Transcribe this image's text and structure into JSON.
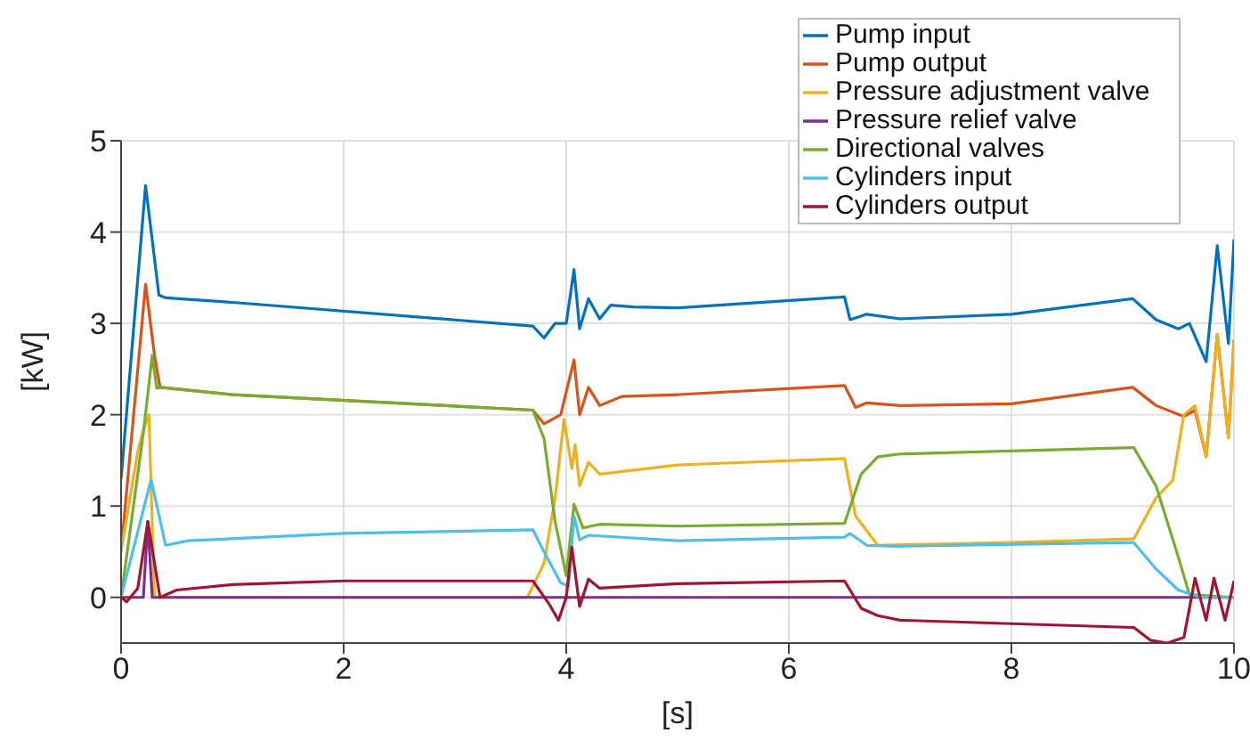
{
  "chart_data": {
    "type": "line",
    "xlabel": "[s]",
    "ylabel": "[kW]",
    "xlim": [
      0,
      10
    ],
    "ylim": [
      -0.5,
      5
    ],
    "xticks": [
      0,
      2,
      4,
      6,
      8,
      10
    ],
    "yticks": [
      0,
      1,
      2,
      3,
      4,
      5
    ],
    "grid": true,
    "legend": "top right",
    "line_style": "solid",
    "series": [
      {
        "name": "Pump input",
        "color": "#0072bd",
        "x": [
          0,
          0.22,
          0.34,
          0.4,
          1,
          3.7,
          3.8,
          3.9,
          4.0,
          4.07,
          4.12,
          4.2,
          4.3,
          4.4,
          4.6,
          5,
          6.5,
          6.55,
          6.7,
          7,
          8,
          9.09,
          9.3,
          9.5,
          9.6,
          9.75,
          9.85,
          9.95,
          10
        ],
        "values": [
          1.3,
          4.51,
          3.31,
          3.28,
          3.23,
          2.97,
          2.84,
          3.0,
          3.0,
          3.59,
          2.94,
          3.27,
          3.05,
          3.2,
          3.18,
          3.17,
          3.29,
          3.04,
          3.1,
          3.05,
          3.1,
          3.27,
          3.04,
          2.94,
          3.0,
          2.58,
          3.85,
          2.78,
          3.92
        ]
      },
      {
        "name": "Pump output",
        "color": "#d95319",
        "x": [
          0,
          0.22,
          0.3,
          0.35,
          1,
          3.7,
          3.8,
          3.95,
          4.07,
          4.12,
          4.2,
          4.3,
          4.5,
          5,
          6.5,
          6.6,
          6.7,
          7,
          8,
          9.09,
          9.3,
          9.55,
          9.65,
          9.75,
          9.85,
          9.95,
          10
        ],
        "values": [
          0.5,
          3.43,
          2.65,
          2.3,
          2.22,
          2.05,
          1.9,
          2.0,
          2.6,
          2.0,
          2.3,
          2.1,
          2.2,
          2.22,
          2.32,
          2.08,
          2.13,
          2.1,
          2.12,
          2.3,
          2.1,
          1.98,
          2.05,
          1.54,
          2.88,
          1.75,
          2.82
        ]
      },
      {
        "name": "Pressure adjustment valve",
        "color": "#edb120",
        "x": [
          0,
          0.15,
          0.2,
          0.25,
          0.3,
          3.65,
          3.8,
          3.9,
          3.98,
          4.05,
          4.08,
          4.12,
          4.2,
          4.3,
          5,
          6.5,
          6.6,
          6.8,
          8,
          9.1,
          9.3,
          9.45,
          9.55,
          9.65,
          9.75,
          9.85,
          9.95,
          10
        ],
        "values": [
          0.5,
          1.6,
          1.83,
          2.0,
          0,
          0,
          0.37,
          1.09,
          1.95,
          1.41,
          1.67,
          1.22,
          1.48,
          1.35,
          1.45,
          1.52,
          0.89,
          0.57,
          0.6,
          0.64,
          1.09,
          1.28,
          2.0,
          2.1,
          1.54,
          2.88,
          1.75,
          2.82
        ]
      },
      {
        "name": "Pressure relief valve",
        "color": "#7e2f8e",
        "x": [
          0,
          0.2,
          0.24,
          0.28,
          10
        ],
        "values": [
          0,
          0,
          0.83,
          0,
          0
        ]
      },
      {
        "name": "Directional valves",
        "color": "#77ac30",
        "x": [
          0,
          0.2,
          0.28,
          0.32,
          0.35,
          1,
          3.7,
          3.8,
          3.9,
          4.0,
          4.07,
          4.15,
          4.3,
          5,
          6.5,
          6.65,
          6.8,
          7,
          9.1,
          9.3,
          9.5,
          9.6,
          10
        ],
        "values": [
          0,
          1.8,
          2.65,
          2.29,
          2.3,
          2.22,
          2.05,
          1.74,
          0.83,
          0.24,
          1.02,
          0.76,
          0.8,
          0.78,
          0.81,
          1.35,
          1.54,
          1.57,
          1.64,
          1.22,
          0.44,
          0.03,
          0
        ]
      },
      {
        "name": "Cylinders input",
        "color": "#4dbeee",
        "x": [
          0,
          0.2,
          0.27,
          0.4,
          0.6,
          2,
          3.7,
          3.8,
          3.95,
          4.02,
          4.07,
          4.12,
          4.2,
          5,
          6.5,
          6.55,
          6.7,
          7,
          9.1,
          9.3,
          9.5,
          9.7,
          10
        ],
        "values": [
          0,
          0.96,
          1.29,
          0.57,
          0.62,
          0.7,
          0.74,
          0.5,
          0.16,
          0.12,
          0.89,
          0.63,
          0.68,
          0.62,
          0.66,
          0.7,
          0.57,
          0.56,
          0.6,
          0.31,
          0.08,
          0,
          0
        ]
      },
      {
        "name": "Cylinders output",
        "color": "#a2142f",
        "x": [
          0,
          0.05,
          0.15,
          0.24,
          0.35,
          0.5,
          1,
          2,
          3.7,
          3.85,
          3.93,
          4.0,
          4.05,
          4.12,
          4.2,
          4.3,
          5,
          6.5,
          6.65,
          6.8,
          7,
          9.1,
          9.25,
          9.4,
          9.55,
          9.65,
          9.75,
          9.82,
          9.92,
          10
        ],
        "values": [
          0,
          -0.05,
          0.1,
          0.83,
          0,
          0.08,
          0.14,
          0.18,
          0.18,
          -0.08,
          -0.25,
          0,
          0.55,
          -0.1,
          0.2,
          0.1,
          0.15,
          0.18,
          -0.12,
          -0.2,
          -0.25,
          -0.33,
          -0.47,
          -0.5,
          -0.44,
          0.21,
          -0.25,
          0.21,
          -0.25,
          0.18
        ]
      }
    ]
  }
}
